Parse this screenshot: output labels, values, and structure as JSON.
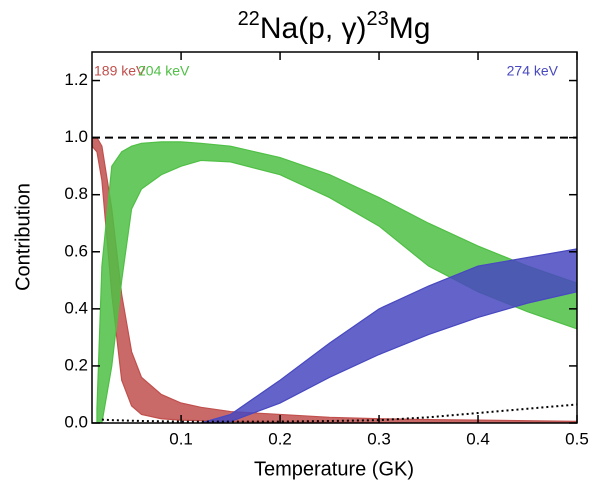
{
  "chart_data": {
    "type": "band",
    "title_parts": [
      "22",
      "Na(p, γ)",
      "23",
      "Mg"
    ],
    "x_label": "Temperature (GK)",
    "y_label": "Contribution",
    "xlim": [
      0.01,
      0.5
    ],
    "ylim": [
      0,
      1.3
    ],
    "xticks": [
      0.1,
      0.2,
      0.3,
      0.4,
      0.5
    ],
    "yticks": [
      {
        "value": 0,
        "label": "0.0"
      },
      0.2,
      0.4,
      0.6,
      0.8,
      {
        "value": 1,
        "label": "1.0"
      },
      1.2
    ],
    "x": [
      0.01,
      0.015,
      0.02,
      0.03,
      0.04,
      0.05,
      0.06,
      0.08,
      0.1,
      0.12,
      0.15,
      0.2,
      0.25,
      0.3,
      0.35,
      0.4,
      0.45,
      0.5
    ],
    "series": [
      {
        "name": "189 keV",
        "color": "#c0504d",
        "lower": [
          0.97,
          0.95,
          0.85,
          0.45,
          0.15,
          0.06,
          0.03,
          0.015,
          0.01,
          0.008,
          0.005,
          0.003,
          0.002,
          0.001,
          0.001,
          0,
          0,
          0
        ],
        "upper": [
          1.0,
          1.0,
          0.97,
          0.75,
          0.45,
          0.25,
          0.16,
          0.1,
          0.07,
          0.055,
          0.04,
          0.03,
          0.02,
          0.015,
          0.012,
          0.01,
          0.008,
          0.006
        ]
      },
      {
        "name": "204 keV",
        "color": "#4fbf45",
        "lower": [
          null,
          0,
          0,
          0.2,
          0.5,
          0.75,
          0.82,
          0.87,
          0.9,
          0.92,
          0.915,
          0.87,
          0.79,
          0.69,
          0.55,
          0.46,
          0.39,
          0.33
        ],
        "upper": [
          null,
          0.05,
          0.55,
          0.9,
          0.95,
          0.97,
          0.98,
          0.985,
          0.985,
          0.98,
          0.97,
          0.93,
          0.87,
          0.79,
          0.7,
          0.62,
          0.55,
          0.49
        ]
      },
      {
        "name": "274 keV",
        "color": "#4848c0",
        "lower": [
          null,
          null,
          null,
          null,
          null,
          null,
          null,
          null,
          null,
          0,
          0.005,
          0.07,
          0.16,
          0.24,
          0.31,
          0.37,
          0.42,
          0.46
        ],
        "upper": [
          null,
          null,
          null,
          null,
          null,
          null,
          null,
          null,
          null,
          0,
          0.03,
          0.15,
          0.28,
          0.4,
          0.48,
          0.55,
          0.58,
          0.61
        ]
      }
    ],
    "total": [
      null,
      null,
      0.012,
      0.01,
      0.009,
      0.008,
      0.007,
      0.006,
      0.005,
      0.005,
      0.005,
      0.005,
      0.007,
      0.01,
      0.02,
      0.035,
      0.05,
      0.065
    ],
    "hline": 1
  }
}
